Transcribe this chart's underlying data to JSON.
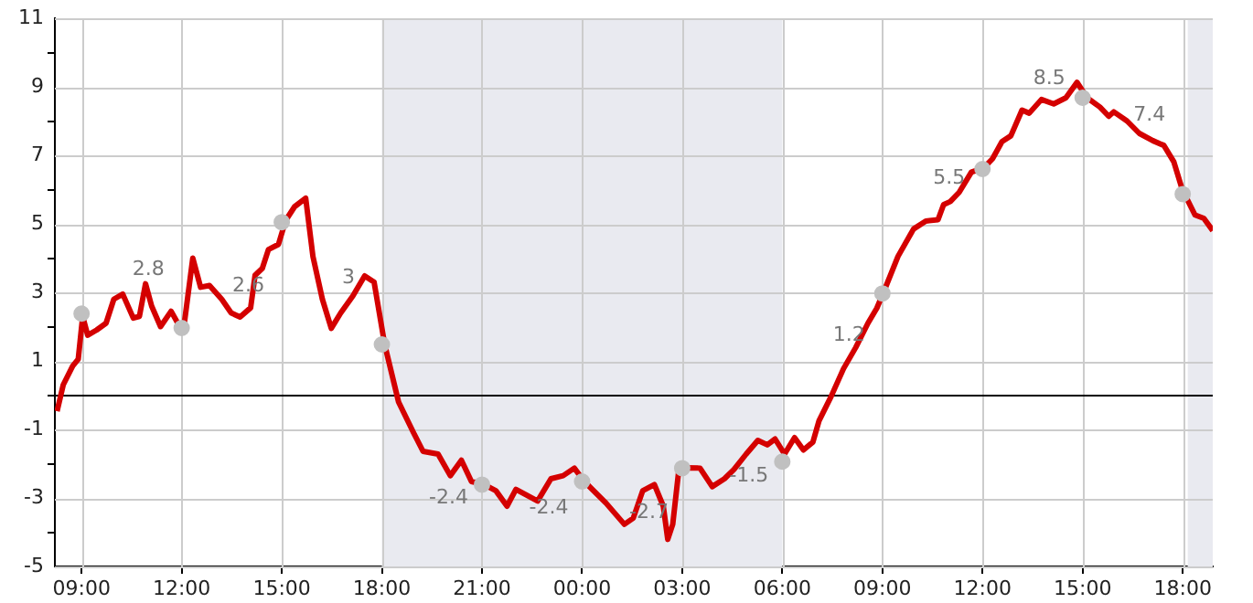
{
  "chart_data": {
    "type": "line",
    "xlim": [
      "--01-01T08:12",
      "--01-02T18:54"
    ],
    "ylim": [
      -5,
      11
    ],
    "xticks": [
      {
        "value": "--01-01T09:00",
        "label": "09:00"
      },
      {
        "value": "--01-01T12:00",
        "label": "12:00"
      },
      {
        "value": "--01-01T15:00",
        "label": "15:00"
      },
      {
        "value": "--01-01T18:00",
        "label": "18:00"
      },
      {
        "value": "--01-01T21:00",
        "label": "21:00"
      },
      {
        "value": "--01-02T00:00",
        "label": "00:00"
      },
      {
        "value": "--01-02T03:00",
        "label": "03:00"
      },
      {
        "value": "--01-02T06:00",
        "label": "06:00"
      },
      {
        "value": "--01-02T09:00",
        "label": "09:00"
      },
      {
        "value": "--01-02T12:00",
        "label": "12:00"
      },
      {
        "value": "--01-02T15:00",
        "label": "15:00"
      },
      {
        "value": "--01-02T18:00",
        "label": "18:00"
      }
    ],
    "yticks": [
      -5,
      {
        "value": -4,
        "label": null
      },
      -3,
      {
        "value": -2,
        "label": null
      },
      -1,
      {
        "value": 0,
        "label": null
      },
      1,
      {
        "value": 2,
        "label": null
      },
      3,
      {
        "value": 4,
        "label": null
      },
      5,
      {
        "value": 6,
        "label": null
      },
      7,
      {
        "value": 8,
        "label": null
      },
      9,
      {
        "value": 10,
        "label": null
      },
      11
    ],
    "grid": true,
    "legend": false,
    "series": [
      {
        "color": "#d40000",
        "marker": "none",
        "x": [
          "--01-01T08:16",
          "--01-01T08:27",
          "--01-01T08:44",
          "--01-01T08:54",
          "--01-01T09:02",
          "--01-01T09:11",
          "--01-01T09:27",
          "--01-01T09:44",
          "--01-01T09:58",
          "--01-01T10:14",
          "--01-01T10:33",
          "--01-01T10:44",
          "--01-01T10:55",
          "--01-01T11:06",
          "--01-01T11:22",
          "--01-01T11:41",
          "--01-01T11:53",
          "--01-01T12:04",
          "--01-01T12:20",
          "--01-01T12:34",
          "--01-01T12:50",
          "--01-01T13:12",
          "--01-01T13:29",
          "--01-01T13:45",
          "--01-01T14:04",
          "--01-01T14:12",
          "--01-01T14:25",
          "--01-01T14:36",
          "--01-01T14:54",
          "--01-01T15:07",
          "--01-01T15:23",
          "--01-01T15:43",
          "--01-01T15:56",
          "--01-01T16:13",
          "--01-01T16:29",
          "--01-01T16:46",
          "--01-01T17:08",
          "--01-01T17:29",
          "--01-01T17:46",
          "--01-01T18:05",
          "--01-01T18:30",
          "--01-01T18:57",
          "--01-01T19:14",
          "--01-01T19:41",
          "--01-01T20:03",
          "--01-01T20:23",
          "--01-01T20:41",
          "--01-01T21:04",
          "--01-01T21:25",
          "--01-01T21:45",
          "--01-01T22:01",
          "--01-01T22:40",
          "--01-01T23:04",
          "--01-01T23:26",
          "--01-01T23:46",
          "--01-02T00:04",
          "--01-02T00:43",
          "--01-02T01:16",
          "--01-02T01:32",
          "--01-02T01:49",
          "--01-02T02:10",
          "--01-02T02:26",
          "--01-02T02:34",
          "--01-02T02:43",
          "--01-02T02:54",
          "--01-02T03:07",
          "--01-02T03:32",
          "--01-02T03:54",
          "--01-02T04:16",
          "--01-02T04:33",
          "--01-02T04:55",
          "--01-02T05:16",
          "--01-02T05:33",
          "--01-02T05:47",
          "--01-02T06:04",
          "--01-02T06:22",
          "--01-02T06:38",
          "--01-02T06:55",
          "--01-02T07:06",
          "--01-02T07:28",
          "--01-02T07:50",
          "--01-02T08:12",
          "--01-02T08:34",
          "--01-02T08:50",
          "--01-02T09:06",
          "--01-02T09:28",
          "--01-02T09:56",
          "--01-02T10:18",
          "--01-02T10:40",
          "--01-02T10:50",
          "--01-02T11:02",
          "--01-02T11:18",
          "--01-02T11:40",
          "--01-02T12:02",
          "--01-02T12:18",
          "--01-02T12:35",
          "--01-02T12:51",
          "--01-02T13:11",
          "--01-02T13:24",
          "--01-02T13:46",
          "--01-02T14:08",
          "--01-02T14:30",
          "--01-02T14:50",
          "--01-02T15:08",
          "--01-02T15:31",
          "--01-02T15:47",
          "--01-02T15:56",
          "--01-02T16:20",
          "--01-02T16:42",
          "--01-02T17:06",
          "--01-02T17:26",
          "--01-02T17:44",
          "--01-02T17:59",
          "--01-02T18:22",
          "--01-02T18:38",
          "--01-02T18:54"
        ],
        "values": [
          -0.47,
          0.3,
          0.85,
          1.05,
          2.3,
          1.75,
          1.9,
          2.1,
          2.8,
          2.95,
          2.25,
          2.3,
          3.25,
          2.6,
          2.0,
          2.45,
          2.1,
          2.0,
          4.0,
          3.15,
          3.2,
          2.8,
          2.4,
          2.28,
          2.55,
          3.5,
          3.7,
          4.25,
          4.4,
          5.1,
          5.5,
          5.75,
          4.05,
          2.8,
          1.95,
          2.4,
          2.9,
          3.48,
          3.3,
          1.48,
          -0.2,
          -1.1,
          -1.64,
          -1.72,
          -2.35,
          -1.9,
          -2.52,
          -2.61,
          -2.79,
          -3.24,
          -2.75,
          -3.09,
          -2.44,
          -2.35,
          -2.13,
          -2.52,
          -3.15,
          -3.77,
          -3.59,
          -2.79,
          -2.61,
          -3.24,
          -4.21,
          -3.77,
          -2.17,
          -2.12,
          -2.13,
          -2.67,
          -2.44,
          -2.17,
          -1.72,
          -1.32,
          -1.45,
          -1.28,
          -1.72,
          -1.24,
          -1.6,
          -1.37,
          -0.75,
          -0.03,
          0.77,
          1.39,
          2.1,
          2.54,
          3.16,
          4.05,
          4.85,
          5.08,
          5.12,
          5.56,
          5.65,
          5.92,
          6.51,
          6.63,
          6.9,
          7.4,
          7.57,
          8.32,
          8.23,
          8.63,
          8.5,
          8.68,
          9.13,
          8.68,
          8.41,
          8.14,
          8.27,
          8.0,
          7.64,
          7.43,
          7.29,
          6.81,
          6.01,
          5.26,
          5.16,
          4.8
        ]
      },
      {
        "type": "scatter",
        "color": "#c0c0c0",
        "marker": "circle",
        "x": [
          "--01-01T09:00",
          "--01-01T12:00",
          "--01-01T15:00",
          "--01-01T18:00",
          "--01-01T21:00",
          "--01-02T00:00",
          "--01-02T03:00",
          "--01-02T06:00",
          "--01-02T09:00",
          "--01-02T12:00",
          "--01-02T15:00",
          "--01-02T18:00"
        ],
        "values": [
          2.38,
          1.96,
          5.05,
          1.48,
          -2.61,
          -2.52,
          -2.13,
          -1.94,
          2.97,
          6.6,
          8.68,
          5.87
        ]
      }
    ],
    "ref_lines": [
      {
        "axis": "y",
        "value": 0,
        "color": "#000000"
      }
    ],
    "bands": [
      {
        "axis": "x",
        "from": "--01-01T18:00",
        "to": "--01-02T06:00",
        "color": "#e9eaf0"
      },
      {
        "axis": "x",
        "from": "--01-02T18:09",
        "to": "--01-02T18:54",
        "color": "#e9eaf0"
      }
    ],
    "annotations": [
      "2.8",
      "2.6",
      "3",
      "-2.4",
      "-2.4",
      "-2.7",
      "-1.5",
      "1.2",
      "5.5",
      "8.5",
      "7.4"
    ]
  }
}
